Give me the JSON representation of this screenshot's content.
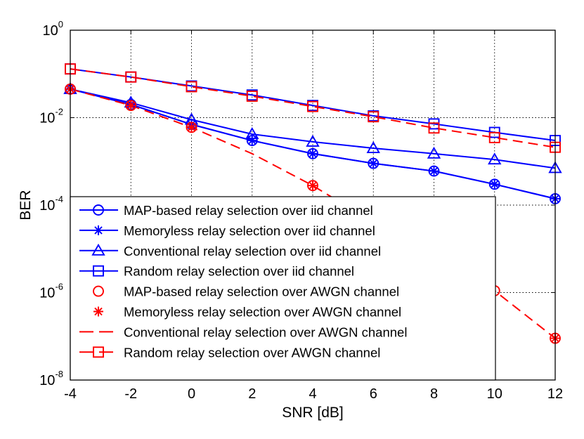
{
  "chart_data": {
    "type": "line",
    "xlabel": "SNR [dB]",
    "ylabel": "BER",
    "xlim": [
      -4,
      12
    ],
    "ylim": [
      1e-08,
      1
    ],
    "yscale": "log",
    "grid": true,
    "legend_position": "lower-left",
    "x_ticks": [
      "-4",
      "-2",
      "0",
      "2",
      "4",
      "6",
      "8",
      "10",
      "12"
    ],
    "y_ticks": [
      {
        "value": 1,
        "base": "10",
        "exp": "0"
      },
      {
        "value": 0.01,
        "base": "10",
        "exp": "-2"
      },
      {
        "value": 0.0001,
        "base": "10",
        "exp": "-4"
      },
      {
        "value": 1e-06,
        "base": "10",
        "exp": "-6"
      },
      {
        "value": 1e-08,
        "base": "10",
        "exp": "-8"
      }
    ],
    "series": [
      {
        "name": "MAP-based relay selection over iid channel",
        "color": "#0000ff",
        "dash": "solid",
        "marker": "circle",
        "x": [
          -4,
          -2,
          0,
          2,
          4,
          6,
          8,
          10,
          12
        ],
        "y": [
          0.045,
          0.02,
          0.007,
          0.003,
          0.0015,
          0.0009,
          0.0006,
          0.0003,
          0.00014
        ]
      },
      {
        "name": "Memoryless relay selection over iid channel",
        "color": "#0000ff",
        "dash": "solid",
        "marker": "star",
        "x": [
          -4,
          -2,
          0,
          2,
          4,
          6,
          8,
          10,
          12
        ],
        "y": [
          0.045,
          0.02,
          0.007,
          0.003,
          0.0015,
          0.0009,
          0.0006,
          0.0003,
          0.00014
        ]
      },
      {
        "name": "Conventional relay selection over iid channel",
        "color": "#0000ff",
        "dash": "solid",
        "marker": "triangle",
        "x": [
          -4,
          -2,
          0,
          2,
          4,
          6,
          8,
          10,
          12
        ],
        "y": [
          0.045,
          0.022,
          0.009,
          0.0042,
          0.0028,
          0.002,
          0.0015,
          0.0011,
          0.0007
        ]
      },
      {
        "name": "Random relay selection over iid channel",
        "color": "#0000ff",
        "dash": "solid",
        "marker": "square",
        "x": [
          -4,
          -2,
          0,
          2,
          4,
          6,
          8,
          10,
          12
        ],
        "y": [
          0.13,
          0.085,
          0.053,
          0.033,
          0.019,
          0.011,
          0.0072,
          0.0046,
          0.003
        ]
      },
      {
        "name": "MAP-based relay selection over AWGN channel",
        "color": "#ff0000",
        "dash": "none",
        "marker": "circle",
        "x": [
          -4,
          -2,
          0,
          4,
          10,
          12
        ],
        "y": [
          0.045,
          0.019,
          0.006,
          0.00028,
          1.1e-06,
          9e-08
        ]
      },
      {
        "name": "Memoryless relay selection over AWGN channel",
        "color": "#ff0000",
        "dash": "none",
        "marker": "star",
        "x": [
          -4,
          -2,
          0,
          4,
          12
        ],
        "y": [
          0.045,
          0.019,
          0.006,
          0.00028,
          9e-08
        ]
      },
      {
        "name": "Conventional relay selection over AWGN channel",
        "color": "#ff0000",
        "dash": "dashed",
        "marker": "none",
        "x": [
          -4,
          -2,
          0,
          2,
          4,
          6,
          8,
          10,
          12
        ],
        "y": [
          0.045,
          0.019,
          0.006,
          0.0015,
          0.00028,
          4e-05,
          6e-06,
          1.1e-06,
          9e-08
        ]
      },
      {
        "name": "Random relay selection over AWGN channel",
        "color": "#ff0000",
        "dash": "dashed",
        "marker": "square",
        "x": [
          -4,
          -2,
          0,
          2,
          4,
          6,
          8,
          10,
          12
        ],
        "y": [
          0.13,
          0.085,
          0.051,
          0.031,
          0.018,
          0.0105,
          0.0058,
          0.0035,
          0.0021
        ]
      }
    ]
  }
}
